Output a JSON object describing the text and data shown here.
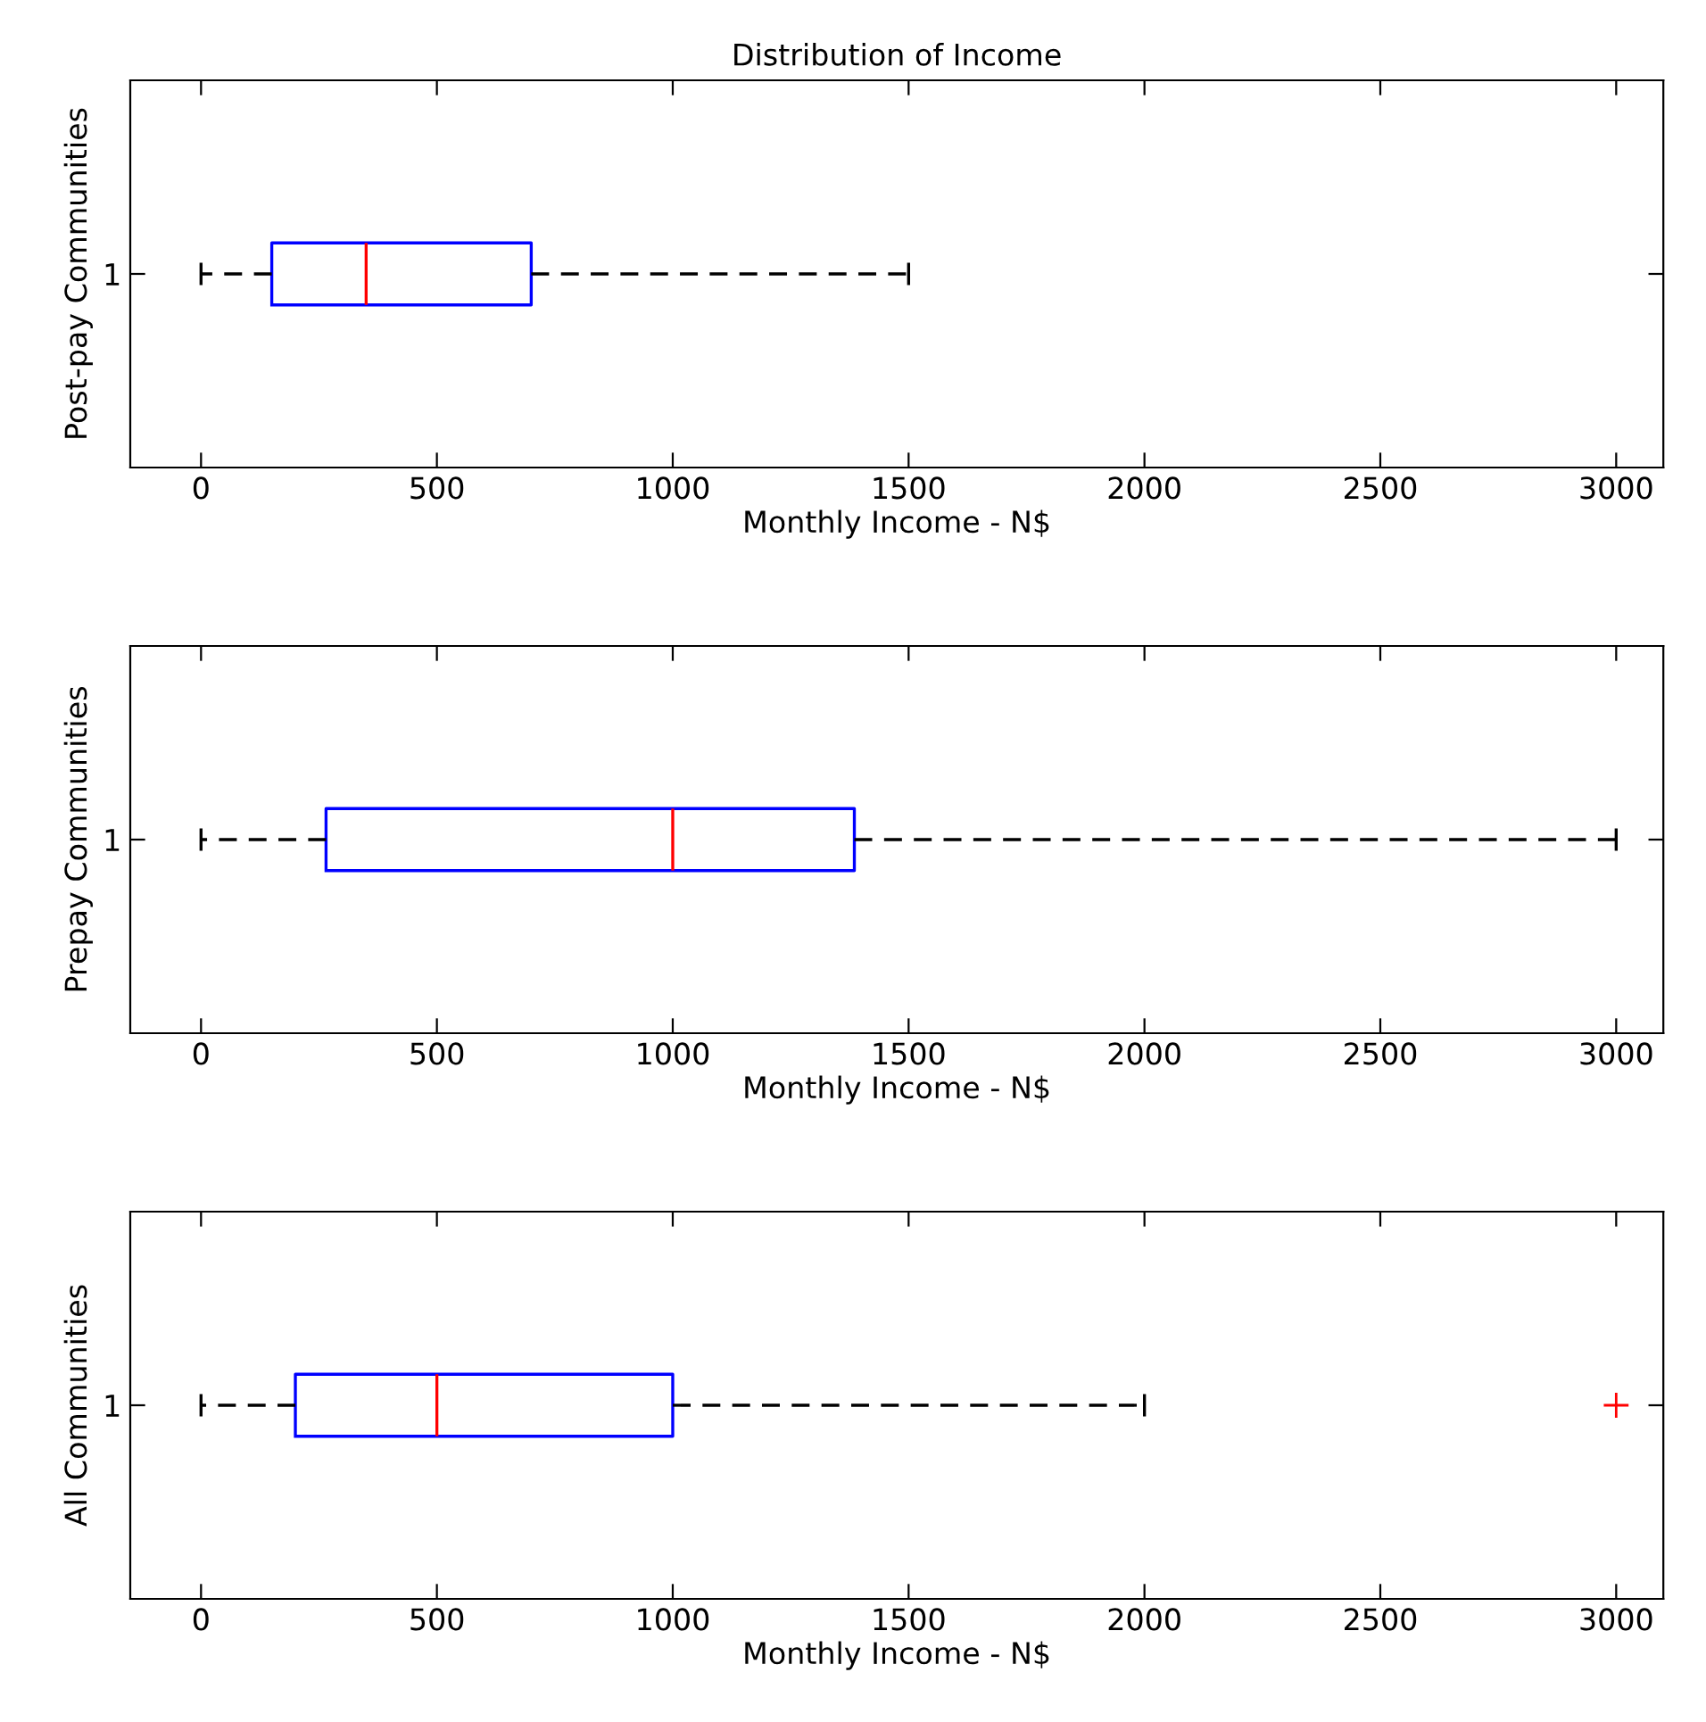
{
  "chart_data": [
    {
      "type": "box",
      "title": "Distribution of Income",
      "orientation": "horizontal",
      "categories": [
        "1"
      ],
      "xlabel": "Monthly Income - N$",
      "ylabel": "Post-pay Communities",
      "xlim": [
        -150,
        3100
      ],
      "xticks": [
        0,
        500,
        1000,
        1500,
        2000,
        2500,
        3000
      ],
      "color": "#0000ff",
      "grid": false,
      "boxes": [
        {
          "low": 0,
          "q1": 150,
          "median": 350,
          "q3": 700,
          "high": 1500
        }
      ]
    },
    {
      "type": "box",
      "orientation": "horizontal",
      "categories": [
        "1"
      ],
      "xlabel": "Monthly Income - N$",
      "ylabel": "Prepay Communities",
      "xlim": [
        -150,
        3100
      ],
      "xticks": [
        0,
        500,
        1000,
        1500,
        2000,
        2500,
        3000
      ],
      "color": "#0000ff",
      "grid": false,
      "boxes": [
        {
          "low": 0,
          "q1": 265,
          "median": 1000,
          "q3": 1385,
          "high": 3000
        }
      ]
    },
    {
      "type": "box",
      "orientation": "horizontal",
      "categories": [
        "1"
      ],
      "xlabel": "Monthly Income - N$",
      "ylabel": "All Communities",
      "xlim": [
        -150,
        3100
      ],
      "xticks": [
        0,
        500,
        1000,
        1500,
        2000,
        2500,
        3000
      ],
      "color": "#0000ff",
      "grid": false,
      "boxes": [
        {
          "low": 0,
          "q1": 200,
          "median": 500,
          "q3": 1000,
          "high": 2000,
          "outliers": [
            3000
          ]
        }
      ]
    }
  ]
}
